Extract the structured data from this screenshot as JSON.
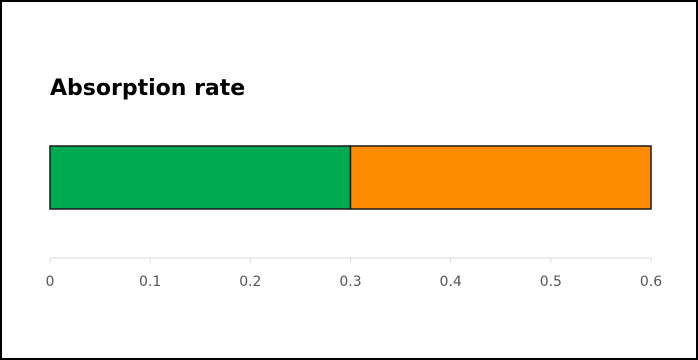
{
  "chart_data": {
    "type": "bar",
    "orientation": "horizontal",
    "stacked": true,
    "title": "Absorption rate",
    "segments": [
      {
        "value": 0.3,
        "color": "#00AA50"
      },
      {
        "value": 0.3,
        "color": "#FF8C00"
      }
    ],
    "xlim": [
      0,
      0.6
    ],
    "x_ticks": [
      0,
      0.1,
      0.2,
      0.3,
      0.4,
      0.5,
      0.6
    ],
    "x_tick_labels": [
      "0",
      "0.1",
      "0.2",
      "0.3",
      "0.4",
      "0.5",
      "0.6"
    ],
    "xlabel": "",
    "ylabel": "",
    "grid": false,
    "legend": "none"
  }
}
